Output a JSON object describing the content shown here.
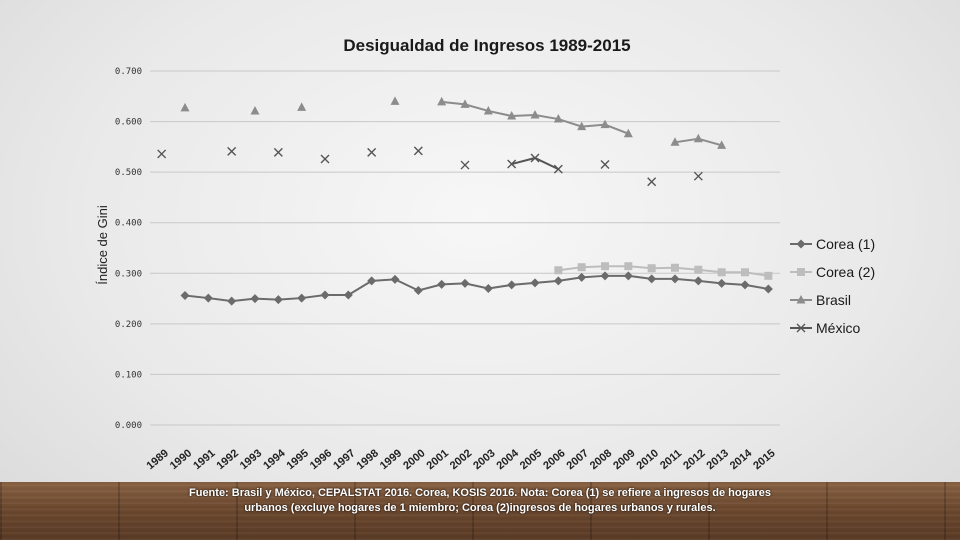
{
  "chart_data": {
    "type": "line",
    "title": "Desigualdad de Ingresos 1989-2015",
    "xlabel": "",
    "ylabel": "Índice de Gini",
    "ylim": [
      0,
      0.7
    ],
    "yticks": [
      "0.000",
      "0.100",
      "0.200",
      "0.300",
      "0.400",
      "0.500",
      "0.600",
      "0.700"
    ],
    "grid": true,
    "legend_position": "right",
    "categories": [
      "1989",
      "1990",
      "1991",
      "1992",
      "1993",
      "1994",
      "1995",
      "1996",
      "1997",
      "1998",
      "1999",
      "2000",
      "2001",
      "2002",
      "2003",
      "2004",
      "2005",
      "2006",
      "2007",
      "2008",
      "2009",
      "2010",
      "2011",
      "2012",
      "2013",
      "2014",
      "2015"
    ],
    "series": [
      {
        "name": "Corea (1)",
        "marker": "diamond",
        "color": "#6b6b6b",
        "values": [
          null,
          0.256,
          0.251,
          0.245,
          0.25,
          0.248,
          0.251,
          0.257,
          0.257,
          0.285,
          0.288,
          0.266,
          0.278,
          0.28,
          0.27,
          0.277,
          0.281,
          0.285,
          0.292,
          0.295,
          0.295,
          0.289,
          0.289,
          0.285,
          0.28,
          0.277,
          0.269
        ]
      },
      {
        "name": "Corea (2)",
        "marker": "square",
        "color": "#bdbdbd",
        "values": [
          null,
          null,
          null,
          null,
          null,
          null,
          null,
          null,
          null,
          null,
          null,
          null,
          null,
          null,
          null,
          null,
          null,
          0.306,
          0.312,
          0.314,
          0.314,
          0.31,
          0.311,
          0.307,
          0.302,
          0.302,
          0.295
        ]
      },
      {
        "name": "Brasil",
        "marker": "triangle",
        "color": "#8c8c8c",
        "values": [
          null,
          0.627,
          null,
          null,
          0.621,
          null,
          0.628,
          null,
          null,
          null,
          0.64,
          null,
          0.639,
          0.634,
          0.621,
          0.611,
          0.613,
          0.605,
          0.59,
          0.594,
          0.576,
          null,
          0.559,
          0.566,
          0.553,
          null,
          null
        ]
      },
      {
        "name": "México",
        "marker": "x",
        "color": "#555555",
        "values": [
          0.536,
          null,
          null,
          0.541,
          null,
          0.539,
          null,
          0.526,
          null,
          0.539,
          null,
          0.542,
          null,
          0.514,
          null,
          0.516,
          0.528,
          0.506,
          null,
          0.515,
          null,
          0.481,
          null,
          0.492,
          null,
          null,
          null
        ]
      }
    ]
  },
  "footer": {
    "source_line1": "Fuente: Brasil y México, CEPALSTAT 2016. Corea, KOSIS 2016. Nota: Corea (1) se refiere a ingresos de hogares",
    "source_line2": "urbanos (excluye hogares de 1 miembro; Corea (2)ingresos de hogares urbanos y rurales."
  }
}
